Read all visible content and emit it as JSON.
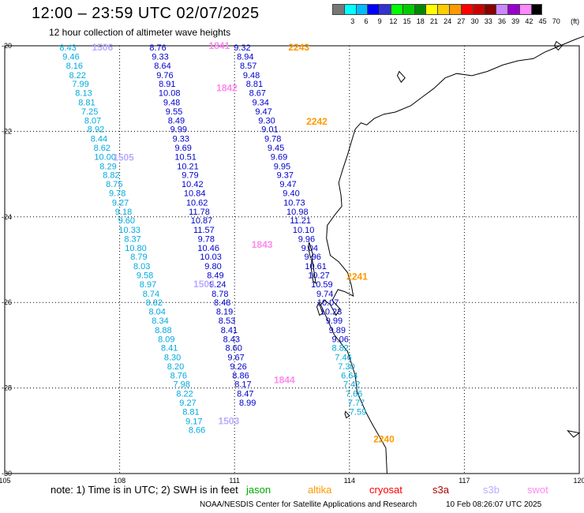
{
  "title": "12:00 – 23:59 UTC 02/07/2025",
  "subtitle": "12 hour collection of altimeter wave heights",
  "colorbar": {
    "unit_label": "(ft)",
    "swatches": [
      {
        "color": "#777777",
        "label": ""
      },
      {
        "color": "#00ffff",
        "label": "3"
      },
      {
        "color": "#00bbff",
        "label": "6"
      },
      {
        "color": "#0000ff",
        "label": "9"
      },
      {
        "color": "#3333cc",
        "label": "12"
      },
      {
        "color": "#00ff00",
        "label": "15"
      },
      {
        "color": "#00cc00",
        "label": "18"
      },
      {
        "color": "#008800",
        "label": "21"
      },
      {
        "color": "#ffff00",
        "label": "24"
      },
      {
        "color": "#ffcc00",
        "label": "27"
      },
      {
        "color": "#ff9900",
        "label": "30"
      },
      {
        "color": "#ff0000",
        "label": "33"
      },
      {
        "color": "#cc0000",
        "label": "36"
      },
      {
        "color": "#880000",
        "label": "39"
      },
      {
        "color": "#cc88ff",
        "label": "42"
      },
      {
        "color": "#9900cc",
        "label": "45"
      },
      {
        "color": "#ff88ff",
        "label": "70"
      },
      {
        "color": "#000000",
        "label": ""
      }
    ]
  },
  "axes": {
    "lon_ticks": [
      "105",
      "108",
      "111",
      "114",
      "117",
      "120"
    ],
    "lat_ticks": [
      "-20",
      "-22",
      "-24",
      "-26",
      "-28",
      "-30"
    ],
    "lon_range": [
      105,
      120
    ],
    "lat_range": [
      -30,
      -20
    ],
    "grid": true
  },
  "colors": {
    "jason": "#00aa00",
    "altika": "#ff9900",
    "cryosat": "#ff0000",
    "s3a": "#aa0000",
    "s3b": "#bbaaff",
    "swot": "#ff88ee",
    "track_a": "#00aadd",
    "track_b": "#0000cc",
    "coast": "#000000"
  },
  "tracks": [
    {
      "type": "track_a",
      "points": [
        {
          "lon": 106.65,
          "lat": -20.04,
          "v": "8.43"
        },
        {
          "lon": 106.73,
          "lat": -20.25,
          "v": "9.46"
        },
        {
          "lon": 106.82,
          "lat": -20.46,
          "v": "8.16"
        },
        {
          "lon": 106.9,
          "lat": -20.68,
          "v": "8.22"
        },
        {
          "lon": 106.98,
          "lat": -20.89,
          "v": "7.99"
        },
        {
          "lon": 107.06,
          "lat": -21.1,
          "v": "8.13"
        },
        {
          "lon": 107.14,
          "lat": -21.32,
          "v": "8.81"
        },
        {
          "lon": 107.22,
          "lat": -21.53,
          "v": "7.25"
        },
        {
          "lon": 107.3,
          "lat": -21.74,
          "v": "8.07"
        },
        {
          "lon": 107.38,
          "lat": -21.95,
          "v": "8.92"
        },
        {
          "lon": 107.46,
          "lat": -22.17,
          "v": "8.44"
        },
        {
          "lon": 107.54,
          "lat": -22.38,
          "v": "8.62"
        },
        {
          "lon": 107.62,
          "lat": -22.59,
          "v": "10.00"
        },
        {
          "lon": 107.7,
          "lat": -22.81,
          "v": "8.29"
        },
        {
          "lon": 107.78,
          "lat": -23.02,
          "v": "8.82"
        },
        {
          "lon": 107.86,
          "lat": -23.23,
          "v": "8.75"
        },
        {
          "lon": 107.94,
          "lat": -23.44,
          "v": "9.78"
        },
        {
          "lon": 108.02,
          "lat": -23.66,
          "v": "9.27"
        },
        {
          "lon": 108.1,
          "lat": -23.87,
          "v": "9.18"
        },
        {
          "lon": 108.18,
          "lat": -24.08,
          "v": "9.60"
        },
        {
          "lon": 108.26,
          "lat": -24.3,
          "v": "10.33"
        },
        {
          "lon": 108.34,
          "lat": -24.51,
          "v": "8.37"
        },
        {
          "lon": 108.42,
          "lat": -24.72,
          "v": "10.80"
        },
        {
          "lon": 108.5,
          "lat": -24.93,
          "v": "8.79"
        },
        {
          "lon": 108.58,
          "lat": -25.15,
          "v": "8.03"
        },
        {
          "lon": 108.66,
          "lat": -25.36,
          "v": "9.58"
        },
        {
          "lon": 108.74,
          "lat": -25.57,
          "v": "8.97"
        },
        {
          "lon": 108.82,
          "lat": -25.79,
          "v": "8.74"
        },
        {
          "lon": 108.9,
          "lat": -26.0,
          "v": "8.82"
        },
        {
          "lon": 108.98,
          "lat": -26.21,
          "v": "8.04"
        },
        {
          "lon": 109.06,
          "lat": -26.42,
          "v": "8.34"
        },
        {
          "lon": 109.14,
          "lat": -26.64,
          "v": "8.88"
        },
        {
          "lon": 109.22,
          "lat": -26.85,
          "v": "8.09"
        },
        {
          "lon": 109.3,
          "lat": -27.06,
          "v": "8.41"
        },
        {
          "lon": 109.38,
          "lat": -27.28,
          "v": "8.30"
        },
        {
          "lon": 109.46,
          "lat": -27.49,
          "v": "8.20"
        },
        {
          "lon": 109.54,
          "lat": -27.7,
          "v": "8.76"
        },
        {
          "lon": 109.62,
          "lat": -27.91,
          "v": "7.98"
        },
        {
          "lon": 109.7,
          "lat": -28.13,
          "v": "8.22"
        },
        {
          "lon": 109.78,
          "lat": -28.34,
          "v": "9.27"
        },
        {
          "lon": 109.86,
          "lat": -28.55,
          "v": "8.81"
        },
        {
          "lon": 109.94,
          "lat": -28.77,
          "v": "9.17"
        },
        {
          "lon": 110.02,
          "lat": -28.98,
          "v": "8.66"
        }
      ]
    },
    {
      "type": "track_b",
      "points": [
        {
          "lon": 109.0,
          "lat": -20.04,
          "v": "8.76"
        },
        {
          "lon": 109.06,
          "lat": -20.25,
          "v": "9.33"
        },
        {
          "lon": 109.12,
          "lat": -20.46,
          "v": "8.64"
        },
        {
          "lon": 109.18,
          "lat": -20.68,
          "v": "9.76"
        },
        {
          "lon": 109.24,
          "lat": -20.89,
          "v": "8.91"
        },
        {
          "lon": 109.3,
          "lat": -21.1,
          "v": "10.08"
        },
        {
          "lon": 109.36,
          "lat": -21.32,
          "v": "9.48"
        },
        {
          "lon": 109.42,
          "lat": -21.53,
          "v": "9.55"
        },
        {
          "lon": 109.48,
          "lat": -21.74,
          "v": "8.49"
        },
        {
          "lon": 109.54,
          "lat": -21.95,
          "v": "9.99"
        },
        {
          "lon": 109.6,
          "lat": -22.17,
          "v": "9.33"
        },
        {
          "lon": 109.66,
          "lat": -22.38,
          "v": "9.69"
        },
        {
          "lon": 109.72,
          "lat": -22.59,
          "v": "10.51"
        },
        {
          "lon": 109.78,
          "lat": -22.81,
          "v": "10.21"
        },
        {
          "lon": 109.84,
          "lat": -23.02,
          "v": "9.79"
        },
        {
          "lon": 109.9,
          "lat": -23.23,
          "v": "10.42"
        },
        {
          "lon": 109.96,
          "lat": -23.44,
          "v": "10.84"
        },
        {
          "lon": 110.02,
          "lat": -23.66,
          "v": "10.62"
        },
        {
          "lon": 110.08,
          "lat": -23.87,
          "v": "11.78"
        },
        {
          "lon": 110.14,
          "lat": -24.08,
          "v": "10.87"
        },
        {
          "lon": 110.2,
          "lat": -24.3,
          "v": "11.57"
        },
        {
          "lon": 110.26,
          "lat": -24.51,
          "v": "9.78"
        },
        {
          "lon": 110.32,
          "lat": -24.72,
          "v": "10.46"
        },
        {
          "lon": 110.38,
          "lat": -24.93,
          "v": "10.03"
        },
        {
          "lon": 110.44,
          "lat": -25.15,
          "v": "9.80"
        },
        {
          "lon": 110.5,
          "lat": -25.36,
          "v": "8.49"
        },
        {
          "lon": 110.56,
          "lat": -25.57,
          "v": "9.24"
        },
        {
          "lon": 110.62,
          "lat": -25.79,
          "v": "8.78"
        },
        {
          "lon": 110.68,
          "lat": -26.0,
          "v": "8.48"
        },
        {
          "lon": 110.74,
          "lat": -26.21,
          "v": "8.19"
        },
        {
          "lon": 110.8,
          "lat": -26.42,
          "v": "8.53"
        },
        {
          "lon": 110.86,
          "lat": -26.64,
          "v": "8.41"
        },
        {
          "lon": 110.92,
          "lat": -26.85,
          "v": "8.43"
        },
        {
          "lon": 110.98,
          "lat": -27.06,
          "v": "8.60"
        },
        {
          "lon": 111.04,
          "lat": -27.28,
          "v": "9.67"
        },
        {
          "lon": 111.1,
          "lat": -27.49,
          "v": "9.26"
        },
        {
          "lon": 111.16,
          "lat": -27.7,
          "v": "8.86"
        },
        {
          "lon": 111.22,
          "lat": -27.91,
          "v": "8.17"
        },
        {
          "lon": 111.28,
          "lat": -28.13,
          "v": "8.47"
        },
        {
          "lon": 111.34,
          "lat": -28.34,
          "v": "8.99"
        }
      ]
    },
    {
      "type": "track_b",
      "points": [
        {
          "lon": 111.2,
          "lat": -20.04,
          "v": "9.32"
        },
        {
          "lon": 111.28,
          "lat": -20.25,
          "v": "8.94"
        },
        {
          "lon": 111.36,
          "lat": -20.46,
          "v": "8.57"
        },
        {
          "lon": 111.44,
          "lat": -20.68,
          "v": "9.48"
        },
        {
          "lon": 111.52,
          "lat": -20.89,
          "v": "8.81"
        },
        {
          "lon": 111.6,
          "lat": -21.1,
          "v": "8.67"
        },
        {
          "lon": 111.68,
          "lat": -21.32,
          "v": "9.34"
        },
        {
          "lon": 111.76,
          "lat": -21.53,
          "v": "9.47"
        },
        {
          "lon": 111.84,
          "lat": -21.74,
          "v": "9.30"
        },
        {
          "lon": 111.92,
          "lat": -21.95,
          "v": "9.01"
        },
        {
          "lon": 112.0,
          "lat": -22.17,
          "v": "9.78"
        },
        {
          "lon": 112.08,
          "lat": -22.38,
          "v": "9.45"
        },
        {
          "lon": 112.16,
          "lat": -22.59,
          "v": "9.69"
        },
        {
          "lon": 112.24,
          "lat": -22.81,
          "v": "9.95"
        },
        {
          "lon": 112.32,
          "lat": -23.02,
          "v": "9.37"
        },
        {
          "lon": 112.4,
          "lat": -23.23,
          "v": "9.47"
        },
        {
          "lon": 112.48,
          "lat": -23.44,
          "v": "9.40"
        },
        {
          "lon": 112.56,
          "lat": -23.66,
          "v": "10.73"
        },
        {
          "lon": 112.64,
          "lat": -23.87,
          "v": "10.98"
        },
        {
          "lon": 112.72,
          "lat": -24.08,
          "v": "11.21"
        },
        {
          "lon": 112.8,
          "lat": -24.3,
          "v": "10.10"
        },
        {
          "lon": 112.88,
          "lat": -24.51,
          "v": "9.96"
        },
        {
          "lon": 112.96,
          "lat": -24.72,
          "v": "9.04"
        },
        {
          "lon": 113.04,
          "lat": -24.93,
          "v": "9.96"
        },
        {
          "lon": 113.12,
          "lat": -25.15,
          "v": "10.61"
        },
        {
          "lon": 113.2,
          "lat": -25.36,
          "v": "10.27"
        },
        {
          "lon": 113.28,
          "lat": -25.57,
          "v": "10.59"
        },
        {
          "lon": 113.36,
          "lat": -25.79,
          "v": "9.74"
        },
        {
          "lon": 113.44,
          "lat": -26.0,
          "v": "10.07"
        },
        {
          "lon": 113.52,
          "lat": -26.21,
          "v": "10.23"
        },
        {
          "lon": 113.6,
          "lat": -26.42,
          "v": "9.99"
        },
        {
          "lon": 113.68,
          "lat": -26.64,
          "v": "9.89"
        },
        {
          "lon": 113.76,
          "lat": -26.85,
          "v": "9.06"
        }
      ]
    },
    {
      "type": "track_a",
      "points": [
        {
          "lon": 113.76,
          "lat": -27.06,
          "v": "8.82"
        },
        {
          "lon": 113.84,
          "lat": -27.28,
          "v": "7.46"
        },
        {
          "lon": 113.92,
          "lat": -27.49,
          "v": "7.30"
        },
        {
          "lon": 114.0,
          "lat": -27.7,
          "v": "6.64"
        },
        {
          "lon": 114.06,
          "lat": -27.91,
          "v": "7.42"
        },
        {
          "lon": 114.12,
          "lat": -28.13,
          "v": "7.66"
        },
        {
          "lon": 114.18,
          "lat": -28.34,
          "v": "7.77"
        },
        {
          "lon": 114.22,
          "lat": -28.55,
          "v": "7.59"
        }
      ]
    }
  ],
  "time_labels": [
    {
      "text": "1506",
      "lon": 107.55,
      "lat": -20.04,
      "type": "s3b"
    },
    {
      "text": "1505",
      "lon": 108.1,
      "lat": -22.61,
      "type": "s3b"
    },
    {
      "text": "1504",
      "lon": 110.2,
      "lat": -25.57,
      "type": "s3b"
    },
    {
      "text": "1503",
      "lon": 110.85,
      "lat": -28.77,
      "type": "s3b"
    },
    {
      "text": "1841",
      "lon": 110.6,
      "lat": -20.0,
      "type": "swot"
    },
    {
      "text": "1842",
      "lon": 110.8,
      "lat": -20.99,
      "type": "swot"
    },
    {
      "text": "1843",
      "lon": 111.72,
      "lat": -24.65,
      "type": "swot"
    },
    {
      "text": "1844",
      "lon": 112.3,
      "lat": -27.81,
      "type": "swot"
    },
    {
      "text": "2243",
      "lon": 112.68,
      "lat": -20.04,
      "type": "altika"
    },
    {
      "text": "2242",
      "lon": 113.15,
      "lat": -21.77,
      "type": "altika"
    },
    {
      "text": "2241",
      "lon": 114.2,
      "lat": -25.4,
      "type": "altika"
    },
    {
      "text": "2240",
      "lon": 114.9,
      "lat": -29.2,
      "type": "altika"
    }
  ],
  "note": "note:  1) Time is in UTC;  2) SWH is in feet",
  "legend": [
    {
      "label": "jason",
      "color": "#00aa00"
    },
    {
      "label": "altika",
      "color": "#ff9900"
    },
    {
      "label": "cryosat",
      "color": "#ff0000"
    },
    {
      "label": "s3a",
      "color": "#aa0000"
    },
    {
      "label": "s3b",
      "color": "#bbaaff"
    },
    {
      "label": "swot",
      "color": "#ff88ee"
    }
  ],
  "credit": "NOAA/NESDIS Center for Satellite Applications and Research",
  "timestamp": "10 Feb 08:26:07 UTC 2025"
}
